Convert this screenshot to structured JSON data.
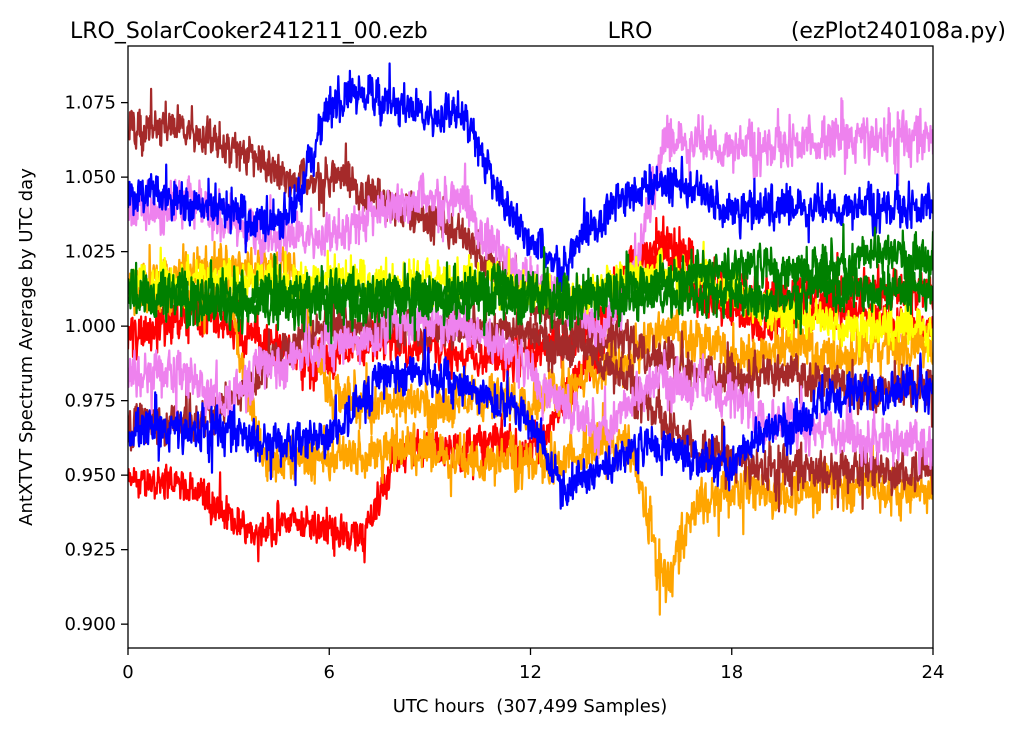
{
  "header": {
    "left": "LRO_SolarCooker241211_00.ezb",
    "center": "LRO",
    "right": "(ezPlot240108a.py)"
  },
  "chart_data": {
    "type": "line",
    "title": "",
    "xlabel": "UTC hours  (307,499 Samples)",
    "ylabel": "AntXTVT Spectrum Average by UTC day",
    "xlim": [
      0,
      24
    ],
    "ylim": [
      0.892,
      1.094
    ],
    "x_ticks": [
      0,
      6,
      12,
      18,
      24
    ],
    "x_tick_labels": [
      "0",
      "6",
      "12",
      "18",
      "24"
    ],
    "y_ticks": [
      0.9,
      0.925,
      0.95,
      0.975,
      1.0,
      1.025,
      1.05,
      1.075
    ],
    "y_tick_labels": [
      "0.900",
      "0.925",
      "0.950",
      "0.975",
      "1.000",
      "1.025",
      "1.050",
      "1.075"
    ],
    "grid": false,
    "legend": "none",
    "x": [
      0,
      1,
      2,
      3,
      4,
      5,
      6,
      7,
      8,
      9,
      10,
      11,
      12,
      13,
      14,
      15,
      16,
      17,
      18,
      19,
      20,
      21,
      22,
      23,
      24
    ],
    "series": [
      {
        "color": "#ff0000",
        "values": [
          0.947,
          0.948,
          0.946,
          0.935,
          0.932,
          0.935,
          0.932,
          0.928,
          0.958,
          0.96,
          0.958,
          0.962,
          0.955,
          0.975,
          0.99,
          1.02,
          1.025,
          1.01,
          1.005,
          1.0,
          1.005,
          1.005,
          1.005,
          1.0,
          1.0
        ],
        "noise": 0.008
      },
      {
        "color": "#ff0000",
        "values": [
          0.995,
          1.0,
          1.005,
          1.0,
          0.995,
          0.99,
          0.99,
          0.993,
          0.995,
          0.995,
          0.99,
          0.99,
          0.99,
          0.995,
          1.0,
          1.02,
          1.028,
          1.02,
          1.01,
          1.01,
          1.01,
          1.012,
          1.012,
          1.012,
          1.012
        ],
        "noise": 0.009
      },
      {
        "color": "#ffa500",
        "values": [
          1.01,
          1.012,
          1.013,
          1.01,
          0.955,
          0.955,
          0.955,
          0.958,
          0.96,
          0.958,
          0.955,
          0.955,
          0.955,
          0.955,
          0.96,
          0.96,
          0.912,
          0.942,
          0.945,
          0.945,
          0.945,
          0.945,
          0.948,
          0.945,
          0.945
        ],
        "noise": 0.01
      },
      {
        "color": "#ffa500",
        "values": [
          1.012,
          1.015,
          1.02,
          1.02,
          1.02,
          1.018,
          0.978,
          0.975,
          0.975,
          0.975,
          0.975,
          0.975,
          0.975,
          0.98,
          0.985,
          0.99,
          0.998,
          0.995,
          0.99,
          0.99,
          0.993,
          0.99,
          0.993,
          0.993,
          0.993
        ],
        "noise": 0.01
      },
      {
        "color": "#a52a2a",
        "values": [
          1.065,
          1.068,
          1.065,
          1.06,
          1.055,
          1.05,
          1.05,
          1.045,
          1.04,
          1.035,
          1.03,
          1.02,
          1.01,
          1.0,
          0.99,
          0.98,
          0.968,
          0.958,
          0.955,
          0.952,
          0.952,
          0.952,
          0.952,
          0.952,
          0.952
        ],
        "noise": 0.009
      },
      {
        "color": "#a52a2a",
        "values": [
          0.965,
          0.968,
          0.97,
          0.975,
          0.985,
          0.995,
          1.0,
          1.0,
          1.0,
          1.0,
          1.0,
          1.0,
          0.998,
          0.995,
          0.995,
          0.995,
          0.99,
          0.985,
          0.983,
          0.983,
          0.983,
          0.98,
          0.978,
          0.978,
          0.978
        ],
        "noise": 0.009
      },
      {
        "color": "#ee82ee",
        "values": [
          1.04,
          1.04,
          1.042,
          1.035,
          1.03,
          1.03,
          1.03,
          1.035,
          1.042,
          1.045,
          1.04,
          1.025,
          1.015,
          1.008,
          1.0,
          1.015,
          1.062,
          1.062,
          1.06,
          1.06,
          1.062,
          1.062,
          1.063,
          1.063,
          1.063
        ],
        "noise": 0.01
      },
      {
        "color": "#ee82ee",
        "values": [
          0.985,
          0.985,
          0.982,
          0.975,
          0.985,
          0.99,
          0.995,
          0.995,
          1.0,
          1.002,
          1.0,
          0.995,
          0.985,
          0.975,
          0.965,
          0.975,
          0.985,
          0.98,
          0.975,
          0.97,
          0.968,
          0.965,
          0.962,
          0.96,
          0.96
        ],
        "noise": 0.01
      },
      {
        "color": "#0000ff",
        "values": [
          1.042,
          1.045,
          1.04,
          1.038,
          1.035,
          1.04,
          1.075,
          1.078,
          1.075,
          1.07,
          1.072,
          1.045,
          1.03,
          1.02,
          1.035,
          1.045,
          1.048,
          1.045,
          1.04,
          1.04,
          1.04,
          1.04,
          1.04,
          1.04,
          1.04
        ],
        "noise": 0.009
      },
      {
        "color": "#0000ff",
        "values": [
          0.965,
          0.965,
          0.965,
          0.965,
          0.962,
          0.96,
          0.965,
          0.975,
          0.985,
          0.985,
          0.98,
          0.975,
          0.968,
          0.945,
          0.952,
          0.958,
          0.962,
          0.955,
          0.955,
          0.965,
          0.97,
          0.975,
          0.978,
          0.98,
          0.98
        ],
        "noise": 0.009
      },
      {
        "color": "#ffff00",
        "values": [
          1.015,
          1.015,
          1.015,
          1.015,
          1.015,
          1.015,
          1.015,
          1.015,
          1.015,
          1.015,
          1.015,
          1.015,
          1.01,
          1.008,
          1.012,
          1.018,
          1.02,
          1.015,
          1.012,
          1.005,
          1.002,
          1.002,
          1.0,
          1.0,
          1.0
        ],
        "noise": 0.009
      },
      {
        "color": "#008000",
        "values": [
          1.01,
          1.01,
          1.01,
          1.01,
          1.01,
          1.01,
          1.01,
          1.01,
          1.01,
          1.01,
          1.01,
          1.012,
          1.012,
          1.01,
          1.01,
          1.012,
          1.015,
          1.018,
          1.02,
          1.02,
          1.02,
          1.02,
          1.025,
          1.025,
          1.025
        ],
        "noise": 0.01
      },
      {
        "color": "#008000",
        "values": [
          1.01,
          1.01,
          1.01,
          1.008,
          1.008,
          1.008,
          1.008,
          1.008,
          1.01,
          1.01,
          1.01,
          1.01,
          1.01,
          1.008,
          1.01,
          1.01,
          1.01,
          1.01,
          1.01,
          1.01,
          1.012,
          1.012,
          1.012,
          1.012,
          1.012
        ],
        "noise": 0.01
      }
    ]
  }
}
